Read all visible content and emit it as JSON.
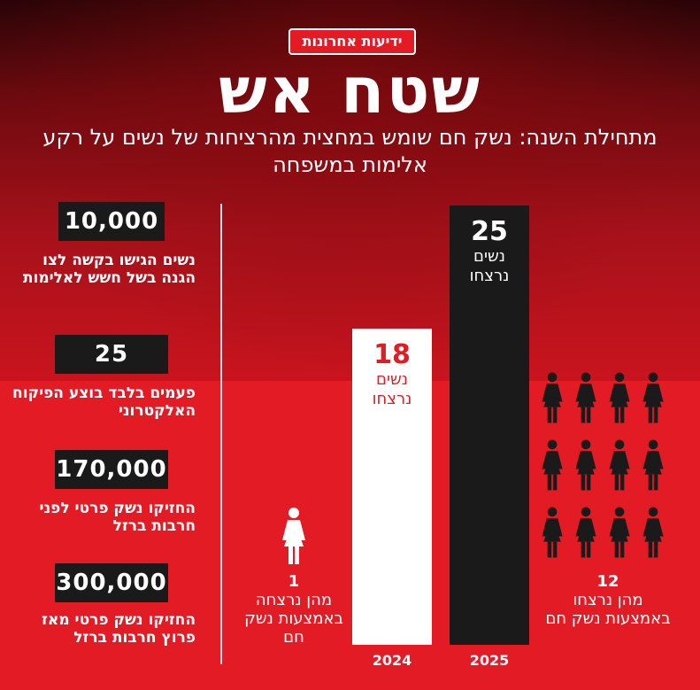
{
  "logo": "ידיעות אחרונות",
  "title": "שטח אש",
  "subtitle": "מתחילת השנה: נשק חם שומש במחצית מהרציחות של נשים על רקע אלימות במשפחה",
  "stats": [
    {
      "value": "10,000",
      "desc": "נשים הגישו בקשה לצו הגנה בשל חשש לאלימות"
    },
    {
      "value": "25",
      "desc": "פעמים בלבד בוצע הפיקוח האלקטרוני"
    },
    {
      "value": "170,000",
      "desc": "החזיקו נשק פרטי לפני חרבות ברזל"
    },
    {
      "value": "300,000",
      "desc": "החזיקו נשק פרטי מאז פרוץ חרבות ברזל"
    }
  ],
  "chart_data": {
    "type": "bar",
    "categories": [
      "2024",
      "2025"
    ],
    "values": [
      18,
      25
    ],
    "value_unit_label": "נשים נרצחו",
    "ylim": [
      0,
      25
    ],
    "bar_colors": [
      "#ffffff",
      "#1a1a1a"
    ],
    "firearm_counts": [
      1,
      12
    ],
    "firearm_notes": [
      "מהן נרצחה באמצעות נשק חם",
      "מהן נרצחו באמצעות נשק חם"
    ]
  },
  "icons": {
    "figure": "woman-figure-icon"
  },
  "colors": {
    "red": "#e21b24",
    "black": "#1a1a1a",
    "white": "#ffffff"
  }
}
